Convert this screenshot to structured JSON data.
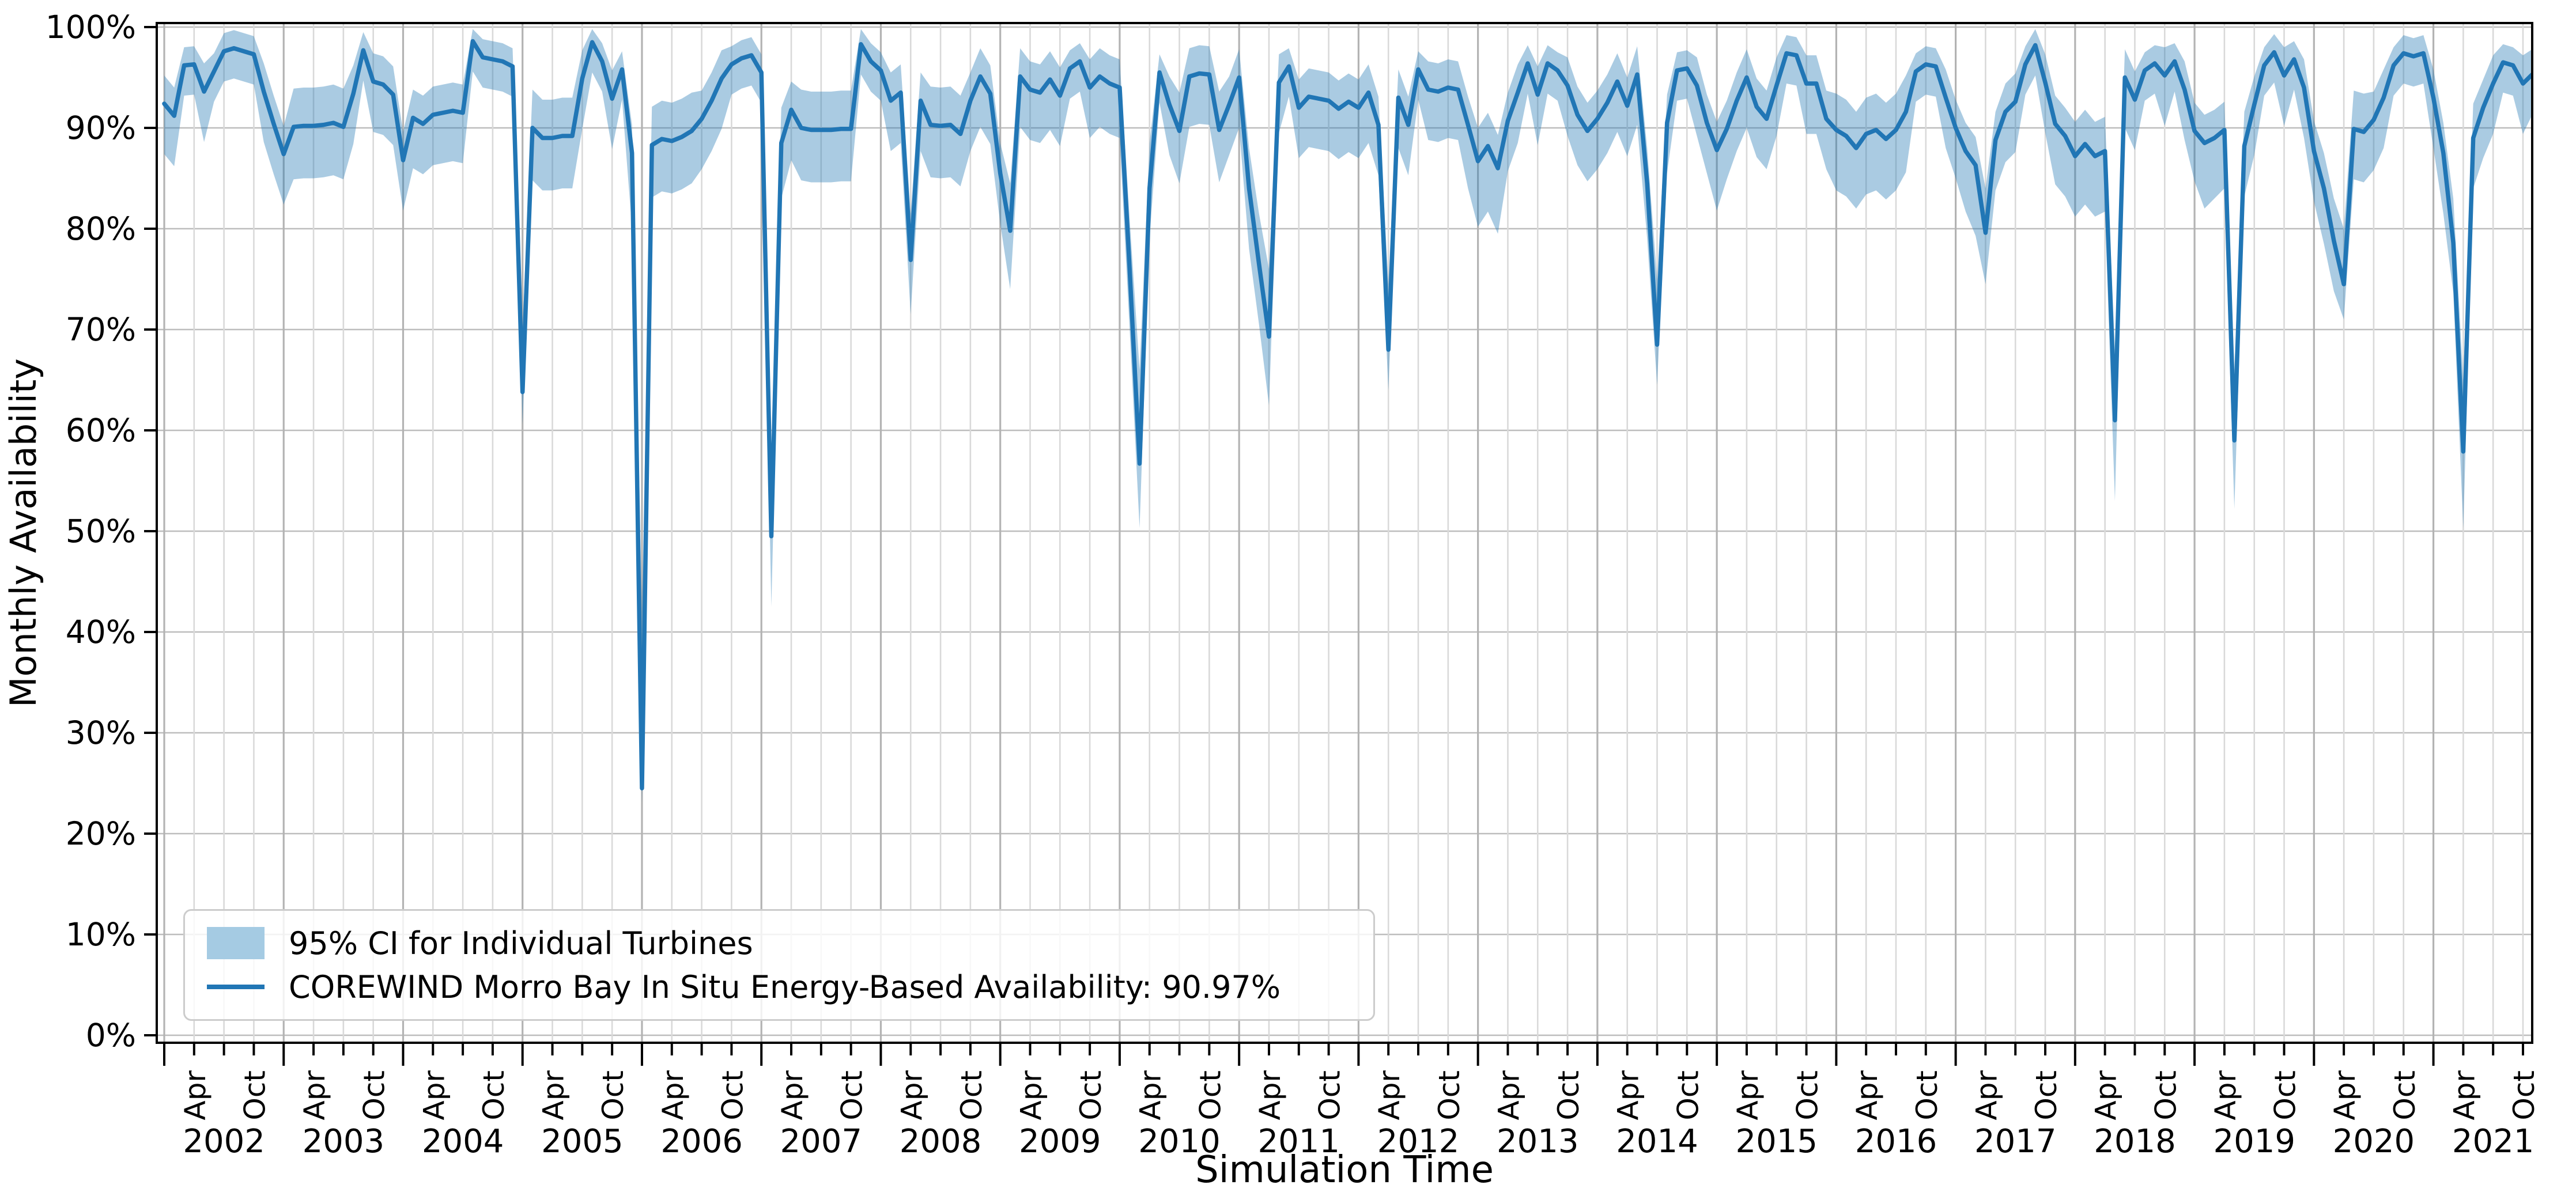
{
  "chart_data": {
    "type": "line",
    "title": "",
    "xlabel": "Simulation Time",
    "ylabel": "Monthly Availability",
    "x_start_month": "2002-01",
    "x_end_month": "2021-11",
    "years": [
      2002,
      2003,
      2004,
      2005,
      2006,
      2007,
      2008,
      2009,
      2010,
      2011,
      2012,
      2013,
      2014,
      2015,
      2016,
      2017,
      2018,
      2019,
      2020,
      2021
    ],
    "month_tick_labels": [
      "Apr",
      "Oct"
    ],
    "ylim": [
      0,
      100
    ],
    "ytick_labels": [
      "0%",
      "10%",
      "20%",
      "30%",
      "40%",
      "50%",
      "60%",
      "70%",
      "80%",
      "90%",
      "100%"
    ],
    "grid": true,
    "legend_position": "lower-left",
    "legend": [
      {
        "type": "band",
        "label": "95% CI for Individual Turbines"
      },
      {
        "type": "line",
        "label": "COREWIND Morro Bay In Situ Energy-Based Availability: 90.97%"
      }
    ],
    "availability_mean_label": "90.97%",
    "colors": {
      "line": "#2176b5",
      "band": "#a5cbe3",
      "grid_h": "#bdbdbd",
      "grid_quarter": "#d9d9d9",
      "grid_year": "#b3b3b3",
      "spine": "#000000",
      "text": "#000000",
      "legend_border": "#cccccc"
    },
    "series": [
      {
        "name": "COREWIND Morro Bay In Situ Energy-Based Availability: 90.97%",
        "type": "line",
        "values": [
          92.4,
          91.2,
          96.2,
          96.3,
          93.6,
          95.6,
          97.6,
          97.9,
          97.6,
          97.3,
          93.6,
          90.4,
          87.4,
          90.1,
          90.2,
          90.2,
          90.3,
          90.5,
          90.1,
          93.4,
          97.7,
          94.6,
          94.3,
          93.3,
          86.8,
          91.0,
          90.4,
          91.3,
          91.5,
          91.7,
          91.5,
          98.6,
          97.0,
          96.8,
          96.6,
          96.1,
          63.8,
          90.0,
          89.0,
          89.0,
          89.2,
          89.2,
          94.9,
          98.5,
          96.6,
          92.9,
          95.8,
          87.5,
          24.5,
          88.3,
          88.9,
          88.7,
          89.1,
          89.7,
          90.9,
          92.7,
          94.9,
          96.3,
          96.9,
          97.2,
          95.5,
          49.5,
          88.5,
          91.8,
          90.0,
          89.8,
          89.8,
          89.8,
          89.9,
          89.9,
          98.3,
          96.6,
          95.7,
          92.7,
          93.5,
          76.9,
          92.7,
          90.3,
          90.2,
          90.3,
          89.4,
          92.7,
          95.1,
          93.4,
          85.5,
          79.8,
          95.1,
          93.8,
          93.5,
          94.8,
          93.2,
          95.9,
          96.6,
          94.0,
          95.1,
          94.4,
          94.0,
          76.0,
          56.7,
          84.0,
          95.5,
          92.3,
          89.7,
          95.1,
          95.4,
          95.3,
          89.8,
          92.3,
          95.0,
          84.0,
          76.5,
          69.3,
          94.5,
          96.1,
          92.0,
          93.1,
          92.9,
          92.7,
          91.9,
          92.6,
          92.0,
          93.5,
          90.3,
          68.0,
          93.0,
          90.3,
          95.8,
          93.8,
          93.6,
          94.0,
          93.8,
          90.3,
          86.7,
          88.2,
          86.0,
          90.7,
          93.5,
          96.4,
          93.3,
          96.4,
          95.7,
          94.2,
          91.3,
          89.7,
          90.9,
          92.5,
          94.6,
          92.2,
          95.3,
          84.5,
          68.5,
          90.5,
          95.7,
          95.9,
          94.2,
          90.5,
          87.8,
          89.9,
          92.7,
          95.0,
          92.1,
          90.9,
          94.2,
          97.4,
          97.2,
          94.4,
          94.4,
          90.9,
          89.8,
          89.2,
          88.0,
          89.4,
          89.8,
          88.9,
          89.8,
          91.6,
          95.6,
          96.3,
          96.1,
          93.0,
          90.0,
          87.7,
          86.3,
          79.6,
          88.8,
          91.6,
          92.6,
          96.3,
          98.2,
          94.5,
          90.4,
          89.2,
          87.2,
          88.4,
          87.2,
          87.7,
          61.0,
          95.0,
          92.8,
          95.7,
          96.4,
          95.2,
          96.6,
          93.8,
          89.7,
          88.5,
          89.0,
          89.8,
          59.0,
          88.2,
          92.3,
          96.2,
          97.5,
          95.2,
          96.8,
          94.0,
          87.7,
          84.0,
          78.8,
          74.5,
          89.9,
          89.6,
          90.8,
          93.0,
          96.2,
          97.4,
          97.1,
          97.4,
          93.0,
          87.5,
          78.6,
          57.9,
          89.0,
          92.0,
          94.4,
          96.5,
          96.2,
          94.4,
          95.3
        ]
      },
      {
        "name": "95% CI for Individual Turbines",
        "type": "band",
        "upper": [
          95.2,
          94.0,
          98.0,
          98.1,
          96.4,
          97.4,
          99.4,
          99.7,
          99.4,
          99.1,
          96.4,
          93.2,
          90.2,
          93.9,
          94.0,
          94.0,
          94.1,
          94.3,
          93.9,
          96.2,
          99.5,
          97.4,
          97.1,
          96.1,
          89.6,
          93.8,
          93.2,
          94.1,
          94.3,
          94.5,
          94.3,
          99.8,
          98.8,
          98.6,
          98.4,
          97.9,
          69.8,
          93.8,
          92.8,
          92.8,
          93.0,
          93.0,
          97.7,
          99.8,
          98.4,
          95.7,
          97.6,
          90.3,
          42.0,
          92.1,
          92.7,
          92.5,
          92.9,
          93.5,
          93.7,
          95.5,
          97.7,
          98.1,
          98.7,
          99.0,
          97.3,
          58.0,
          92.0,
          94.6,
          93.8,
          93.6,
          93.6,
          93.6,
          93.7,
          93.7,
          99.8,
          98.4,
          97.5,
          95.5,
          96.3,
          81.5,
          95.5,
          94.1,
          94.0,
          94.1,
          93.2,
          95.5,
          97.9,
          96.2,
          88.5,
          84.5,
          97.9,
          96.6,
          96.3,
          97.6,
          96.0,
          97.7,
          98.4,
          96.8,
          97.9,
          97.2,
          96.8,
          81.0,
          66.0,
          88.5,
          97.3,
          95.1,
          93.5,
          97.9,
          98.2,
          98.1,
          93.6,
          95.1,
          97.8,
          88.0,
          81.5,
          76.0,
          97.3,
          97.9,
          94.8,
          95.9,
          95.7,
          95.5,
          94.7,
          95.4,
          94.8,
          96.3,
          93.1,
          74.5,
          95.8,
          93.1,
          97.6,
          96.6,
          96.4,
          96.8,
          96.6,
          93.1,
          90.0,
          91.5,
          89.3,
          93.5,
          96.3,
          98.2,
          96.1,
          98.2,
          97.5,
          97.0,
          94.1,
          92.5,
          93.7,
          95.3,
          97.4,
          95.0,
          98.1,
          88.0,
          75.0,
          93.3,
          97.5,
          97.7,
          97.0,
          93.3,
          90.6,
          92.7,
          95.5,
          97.8,
          94.9,
          93.7,
          97.0,
          99.2,
          99.0,
          97.2,
          97.2,
          93.7,
          93.4,
          92.8,
          91.6,
          93.0,
          93.4,
          92.5,
          93.4,
          95.2,
          97.4,
          98.1,
          97.9,
          95.8,
          92.8,
          90.5,
          89.1,
          84.0,
          91.6,
          94.4,
          95.4,
          98.1,
          99.8,
          97.3,
          93.2,
          92.0,
          90.6,
          91.8,
          90.6,
          91.1,
          68.0,
          97.8,
          95.6,
          97.5,
          98.2,
          98.0,
          98.4,
          96.6,
          92.5,
          91.3,
          91.8,
          92.6,
          66.0,
          91.6,
          95.1,
          98.0,
          99.3,
          98.0,
          98.6,
          96.8,
          90.7,
          87.5,
          83.0,
          80.0,
          93.7,
          93.4,
          93.6,
          95.8,
          98.0,
          99.2,
          98.9,
          99.2,
          95.8,
          90.5,
          83.0,
          65.0,
          92.4,
          94.8,
          97.2,
          98.3,
          98.0,
          97.2,
          97.8
        ],
        "lower": [
          87.4,
          86.2,
          93.2,
          93.3,
          88.6,
          92.6,
          94.6,
          94.9,
          94.6,
          94.3,
          88.6,
          85.4,
          82.4,
          84.9,
          85.0,
          85.0,
          85.1,
          85.3,
          84.9,
          88.4,
          94.7,
          89.6,
          89.3,
          88.3,
          81.8,
          86.0,
          85.4,
          86.3,
          86.5,
          86.7,
          86.5,
          95.6,
          94.0,
          93.8,
          93.6,
          93.1,
          60.6,
          84.8,
          83.8,
          83.8,
          84.0,
          84.0,
          89.9,
          95.5,
          93.6,
          87.9,
          92.8,
          80.0,
          23.0,
          83.1,
          83.7,
          83.5,
          83.9,
          84.5,
          85.9,
          87.7,
          89.9,
          93.3,
          93.9,
          94.2,
          92.5,
          42.5,
          83.0,
          86.8,
          84.8,
          84.6,
          84.6,
          84.6,
          84.7,
          84.7,
          95.3,
          93.6,
          92.7,
          87.7,
          88.5,
          71.5,
          87.7,
          85.1,
          85.0,
          85.1,
          84.2,
          87.7,
          90.1,
          88.4,
          80.5,
          74.0,
          90.1,
          88.8,
          88.5,
          89.8,
          88.2,
          92.9,
          93.6,
          89.0,
          90.1,
          89.4,
          89.0,
          70.0,
          50.3,
          79.0,
          92.5,
          87.3,
          84.5,
          90.1,
          90.4,
          90.3,
          84.6,
          87.3,
          90.0,
          78.0,
          70.5,
          62.5,
          89.5,
          93.1,
          87.0,
          88.1,
          87.9,
          87.7,
          86.9,
          87.6,
          87.0,
          88.5,
          85.3,
          64.0,
          88.0,
          85.3,
          92.8,
          88.8,
          88.6,
          89.0,
          88.8,
          84.0,
          80.2,
          81.7,
          79.5,
          85.7,
          88.5,
          93.4,
          88.3,
          93.4,
          92.7,
          89.2,
          86.3,
          84.7,
          85.9,
          87.5,
          89.6,
          87.2,
          90.3,
          79.0,
          64.5,
          85.5,
          92.7,
          92.9,
          89.2,
          85.5,
          81.8,
          84.9,
          87.7,
          90.0,
          87.1,
          85.9,
          89.2,
          94.4,
          94.2,
          89.4,
          89.4,
          85.9,
          83.8,
          83.2,
          82.0,
          83.4,
          83.8,
          82.9,
          83.8,
          85.6,
          92.6,
          93.3,
          93.1,
          88.0,
          85.0,
          81.7,
          79.3,
          74.5,
          83.8,
          86.6,
          87.6,
          93.3,
          95.2,
          89.5,
          84.4,
          83.2,
          81.2,
          82.4,
          81.2,
          81.7,
          53.0,
          90.0,
          87.8,
          92.7,
          93.4,
          90.2,
          93.6,
          88.8,
          84.7,
          82.0,
          83.0,
          84.0,
          52.2,
          83.2,
          87.3,
          93.2,
          94.5,
          90.2,
          93.8,
          89.0,
          82.7,
          78.5,
          73.8,
          71.0,
          84.9,
          84.6,
          85.8,
          88.0,
          93.2,
          94.4,
          94.1,
          94.4,
          88.0,
          81.5,
          73.6,
          50.3,
          84.0,
          87.0,
          89.4,
          93.5,
          93.2,
          89.4,
          91.3
        ]
      }
    ]
  }
}
